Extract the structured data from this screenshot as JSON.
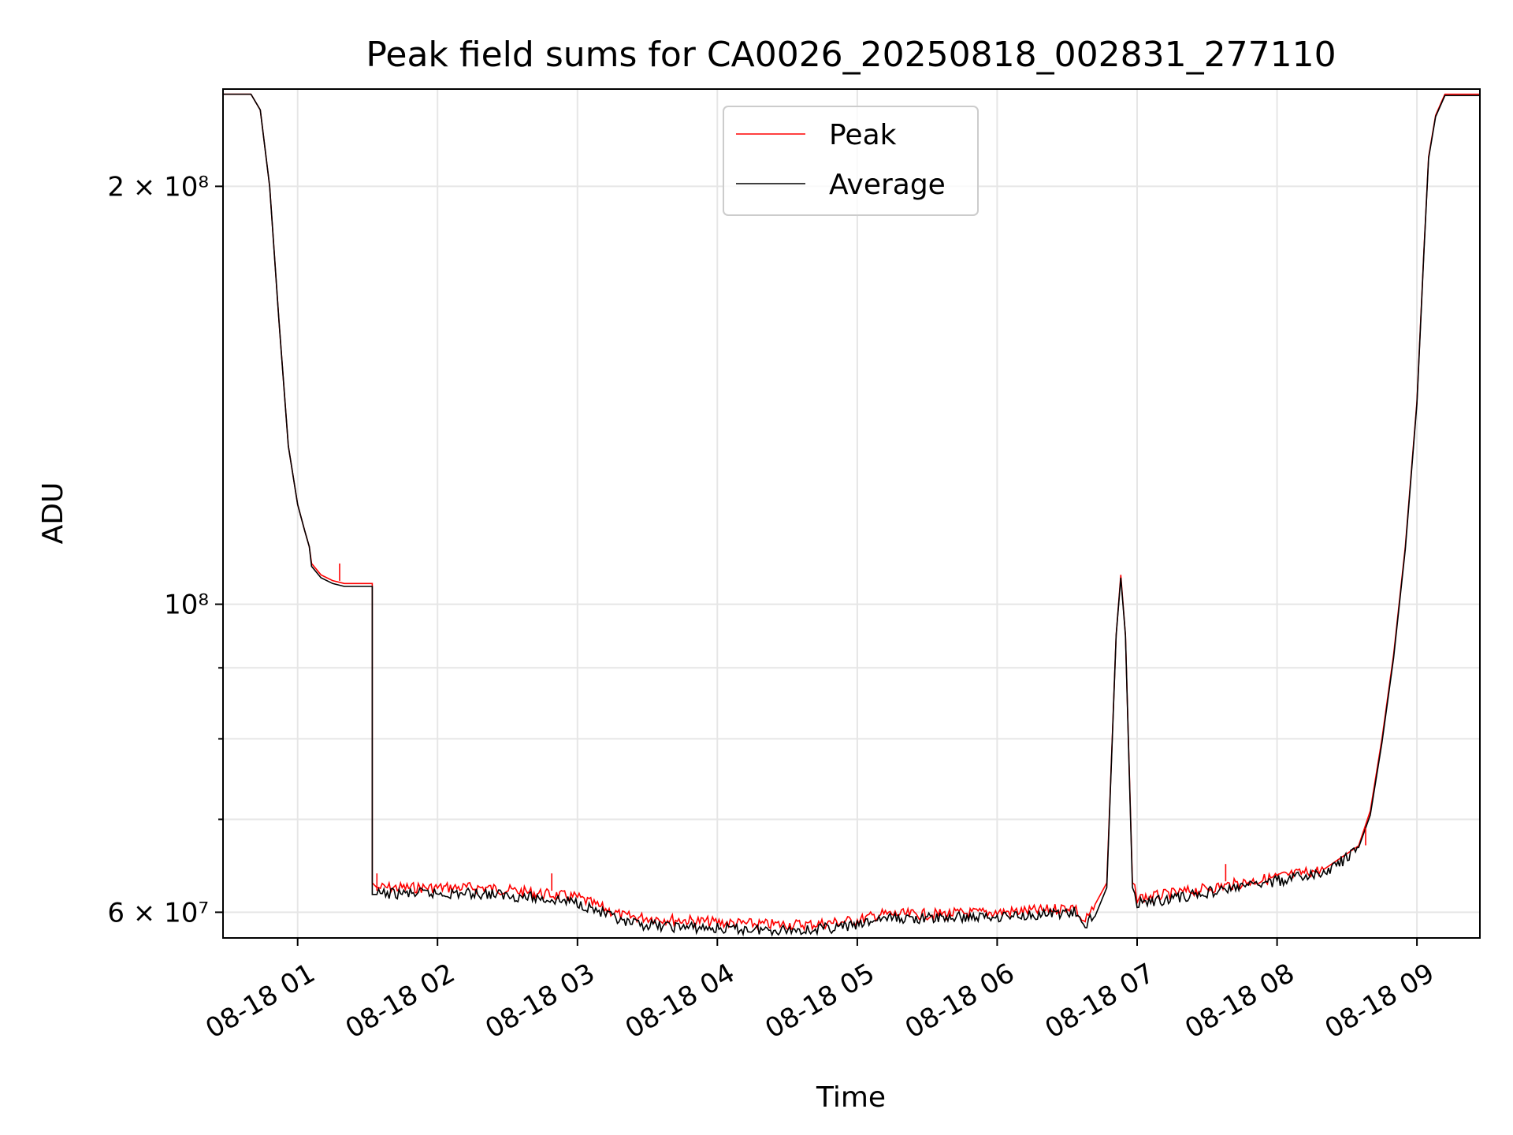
{
  "chart_data": {
    "type": "line",
    "title": "Peak field sums for CA0026_20250818_002831_277110",
    "xlabel": "Time",
    "ylabel": "ADU",
    "yscale": "log",
    "ylim": [
      57500000,
      235000000
    ],
    "xlim": [
      "2025-08-18 00:28",
      "2025-08-18 09:27"
    ],
    "grid": true,
    "legend_position": "upper center",
    "x_ticks": [
      {
        "value": "2025-08-18 01:00",
        "label": "08-18 01"
      },
      {
        "value": "2025-08-18 02:00",
        "label": "08-18 02"
      },
      {
        "value": "2025-08-18 03:00",
        "label": "08-18 03"
      },
      {
        "value": "2025-08-18 04:00",
        "label": "08-18 04"
      },
      {
        "value": "2025-08-18 05:00",
        "label": "08-18 05"
      },
      {
        "value": "2025-08-18 06:00",
        "label": "08-18 06"
      },
      {
        "value": "2025-08-18 07:00",
        "label": "08-18 07"
      },
      {
        "value": "2025-08-18 08:00",
        "label": "08-18 08"
      },
      {
        "value": "2025-08-18 09:00",
        "label": "08-18 09"
      }
    ],
    "y_ticks": [
      {
        "value": 60000000,
        "label": "6 × 10⁷"
      },
      {
        "value": 100000000,
        "label": "10⁸"
      },
      {
        "value": 200000000,
        "label": "2 × 10⁸"
      }
    ],
    "y_minor_ticks": [
      70000000,
      80000000,
      90000000
    ],
    "series": [
      {
        "name": "Peak",
        "color": "#ff0000",
        "x": [
          "2025-08-18 00:28",
          "2025-08-18 00:40",
          "2025-08-18 00:44",
          "2025-08-18 00:48",
          "2025-08-18 00:52",
          "2025-08-18 00:56",
          "2025-08-18 01:00",
          "2025-08-18 01:03",
          "2025-08-18 01:05",
          "2025-08-18 01:06",
          "2025-08-18 01:10",
          "2025-08-18 01:15",
          "2025-08-18 01:20",
          "2025-08-18 01:25",
          "2025-08-18 01:32",
          "2025-08-18 01:32",
          "2025-08-18 01:34",
          "2025-08-18 01:40",
          "2025-08-18 02:00",
          "2025-08-18 02:20",
          "2025-08-18 02:40",
          "2025-08-18 03:00",
          "2025-08-18 03:10",
          "2025-08-18 03:20",
          "2025-08-18 03:40",
          "2025-08-18 04:00",
          "2025-08-18 04:20",
          "2025-08-18 04:40",
          "2025-08-18 05:00",
          "2025-08-18 05:10",
          "2025-08-18 05:30",
          "2025-08-18 06:00",
          "2025-08-18 06:20",
          "2025-08-18 06:33",
          "2025-08-18 06:37",
          "2025-08-18 06:42",
          "2025-08-18 06:47",
          "2025-08-18 06:51",
          "2025-08-18 06:53",
          "2025-08-18 06:55",
          "2025-08-18 06:58",
          "2025-08-18 07:00",
          "2025-08-18 07:03",
          "2025-08-18 07:10",
          "2025-08-18 07:30",
          "2025-08-18 08:00",
          "2025-08-18 08:20",
          "2025-08-18 08:35",
          "2025-08-18 08:40",
          "2025-08-18 08:45",
          "2025-08-18 08:50",
          "2025-08-18 08:55",
          "2025-08-18 09:00",
          "2025-08-18 09:03",
          "2025-08-18 09:05",
          "2025-08-18 09:08",
          "2025-08-18 09:12",
          "2025-08-18 09:27"
        ],
        "y": [
          233000000,
          233000000,
          227000000,
          200000000,
          160000000,
          130000000,
          118000000,
          113000000,
          110000000,
          107000000,
          105000000,
          104000000,
          103500000,
          103500000,
          103500000,
          63000000,
          62500000,
          62500000,
          62500000,
          62500000,
          62000000,
          61500000,
          60500000,
          59600000,
          59300000,
          59000000,
          58800000,
          58800000,
          59200000,
          59800000,
          59800000,
          60000000,
          60200000,
          60600000,
          59000000,
          60500000,
          63000000,
          95000000,
          105000000,
          95000000,
          63000000,
          61500000,
          61500000,
          61700000,
          62400000,
          63600000,
          64400000,
          67000000,
          71000000,
          80000000,
          92000000,
          110000000,
          140000000,
          180000000,
          210000000,
          225000000,
          233000000,
          233000000
        ]
      },
      {
        "name": "Average",
        "color": "#000000",
        "x": [
          "2025-08-18 00:28",
          "2025-08-18 00:40",
          "2025-08-18 00:44",
          "2025-08-18 00:48",
          "2025-08-18 00:52",
          "2025-08-18 00:56",
          "2025-08-18 01:00",
          "2025-08-18 01:03",
          "2025-08-18 01:05",
          "2025-08-18 01:06",
          "2025-08-18 01:10",
          "2025-08-18 01:15",
          "2025-08-18 01:20",
          "2025-08-18 01:25",
          "2025-08-18 01:32",
          "2025-08-18 01:32",
          "2025-08-18 01:34",
          "2025-08-18 01:40",
          "2025-08-18 02:00",
          "2025-08-18 02:20",
          "2025-08-18 02:40",
          "2025-08-18 03:00",
          "2025-08-18 03:10",
          "2025-08-18 03:20",
          "2025-08-18 03:40",
          "2025-08-18 04:00",
          "2025-08-18 04:20",
          "2025-08-18 04:40",
          "2025-08-18 05:00",
          "2025-08-18 05:10",
          "2025-08-18 05:30",
          "2025-08-18 06:00",
          "2025-08-18 06:20",
          "2025-08-18 06:33",
          "2025-08-18 06:37",
          "2025-08-18 06:42",
          "2025-08-18 06:47",
          "2025-08-18 06:51",
          "2025-08-18 06:53",
          "2025-08-18 06:55",
          "2025-08-18 06:58",
          "2025-08-18 07:00",
          "2025-08-18 07:03",
          "2025-08-18 07:10",
          "2025-08-18 07:30",
          "2025-08-18 08:00",
          "2025-08-18 08:20",
          "2025-08-18 08:35",
          "2025-08-18 08:40",
          "2025-08-18 08:45",
          "2025-08-18 08:50",
          "2025-08-18 08:55",
          "2025-08-18 09:00",
          "2025-08-18 09:03",
          "2025-08-18 09:05",
          "2025-08-18 09:08",
          "2025-08-18 09:12",
          "2025-08-18 09:27"
        ],
        "y": [
          233000000,
          233000000,
          227000000,
          200000000,
          160000000,
          130000000,
          118000000,
          113000000,
          110000000,
          106500000,
          104500000,
          103500000,
          103000000,
          103000000,
          103000000,
          61800000,
          61800000,
          61900000,
          61900000,
          61900000,
          61500000,
          61000000,
          60000000,
          58900000,
          58600000,
          58400000,
          58300000,
          58300000,
          58700000,
          59400000,
          59400000,
          59600000,
          59800000,
          60000000,
          58500000,
          59800000,
          62500000,
          95000000,
          104500000,
          95000000,
          62500000,
          61000000,
          61000000,
          61200000,
          62000000,
          63200000,
          64000000,
          66500000,
          70500000,
          79500000,
          91500000,
          109500000,
          139500000,
          179500000,
          209500000,
          224500000,
          232500000,
          232500000
        ]
      }
    ],
    "annotations": [
      {
        "series": "Peak",
        "x": "2025-08-18 01:18",
        "y": 107000000
      },
      {
        "series": "Peak",
        "x": "2025-08-18 01:34",
        "y": 64000000
      },
      {
        "series": "Peak",
        "x": "2025-08-18 02:49",
        "y": 64000000
      },
      {
        "series": "Peak",
        "x": "2025-08-18 07:38",
        "y": 65000000
      },
      {
        "series": "Peak",
        "x": "2025-08-18 08:38",
        "y": 69000000
      }
    ]
  }
}
